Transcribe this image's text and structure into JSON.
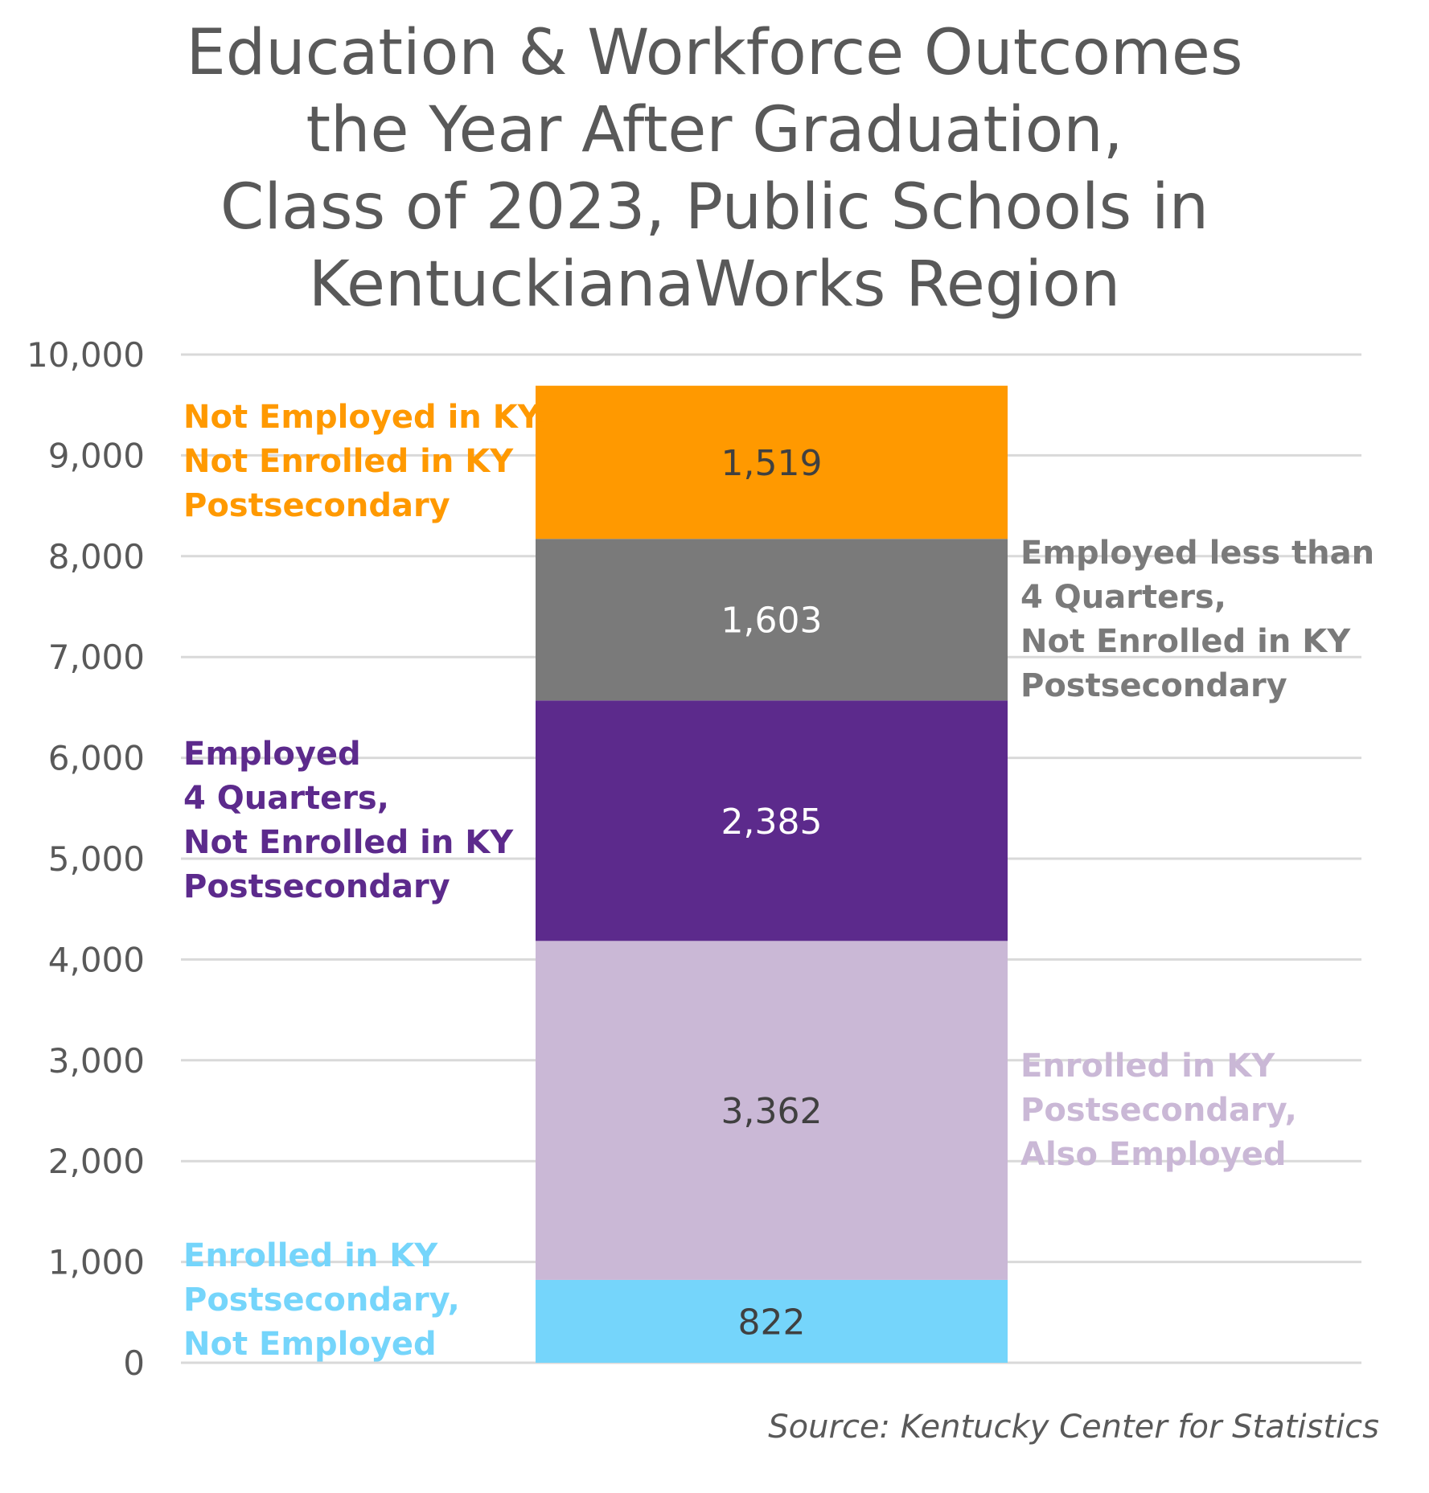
{
  "chart_data": {
    "type": "bar",
    "stacked": true,
    "title_lines": [
      "Education & Workforce Outcomes",
      "the Year After Graduation,",
      "Class of 2023, Public Schools in",
      "KentuckianaWorks Region"
    ],
    "xlabel": "",
    "ylabel": "",
    "ylim": [
      0,
      10000
    ],
    "yticks": [
      "0",
      "1,000",
      "2,000",
      "3,000",
      "4,000",
      "5,000",
      "6,000",
      "7,000",
      "8,000",
      "9,000",
      "10,000"
    ],
    "grid": true,
    "legend": "none",
    "series": [
      {
        "name": "Enrolled in KY Postsecondary, Not Employed",
        "label_lines": [
          "Enrolled in KY",
          "Postsecondary,",
          "Not Employed"
        ],
        "value": 822,
        "display": "822",
        "color": "#75D5FB",
        "text_color": "#404040",
        "label_color": "#75D5FB",
        "label_side": "left"
      },
      {
        "name": "Enrolled in KY Postsecondary, Also Employed",
        "label_lines": [
          "Enrolled in KY",
          "Postsecondary,",
          "Also Employed"
        ],
        "value": 3362,
        "display": "3,362",
        "color": "#CAB8D6",
        "text_color": "#404040",
        "label_color": "#CAB8D6",
        "label_side": "right"
      },
      {
        "name": "Employed 4 Quarters, Not Enrolled in KY Postsecondary",
        "label_lines": [
          "Employed",
          "4 Quarters,",
          "Not Enrolled in KY",
          "Postsecondary"
        ],
        "value": 2385,
        "display": "2,385",
        "color": "#5C2A8C",
        "text_color": "#ffffff",
        "label_color": "#5C2A8C",
        "label_side": "left"
      },
      {
        "name": "Employed less than 4 Quarters, Not Enrolled in KY Postsecondary",
        "label_lines": [
          "Employed less than",
          "4 Quarters,",
          "Not Enrolled in KY",
          "Postsecondary"
        ],
        "value": 1603,
        "display": "1,603",
        "color": "#7A7A7A",
        "text_color": "#ffffff",
        "label_color": "#7A7A7A",
        "label_side": "right"
      },
      {
        "name": "Not Employed in KY, Not Enrolled in KY Postsecondary",
        "label_lines": [
          "Not Employed in KY,",
          "Not Enrolled in KY",
          "Postsecondary"
        ],
        "value": 1519,
        "display": "1,519",
        "color": "#FF9900",
        "text_color": "#404040",
        "label_color": "#FF9900",
        "label_side": "left"
      }
    ]
  },
  "source": "Source: Kentucky Center for Statistics"
}
